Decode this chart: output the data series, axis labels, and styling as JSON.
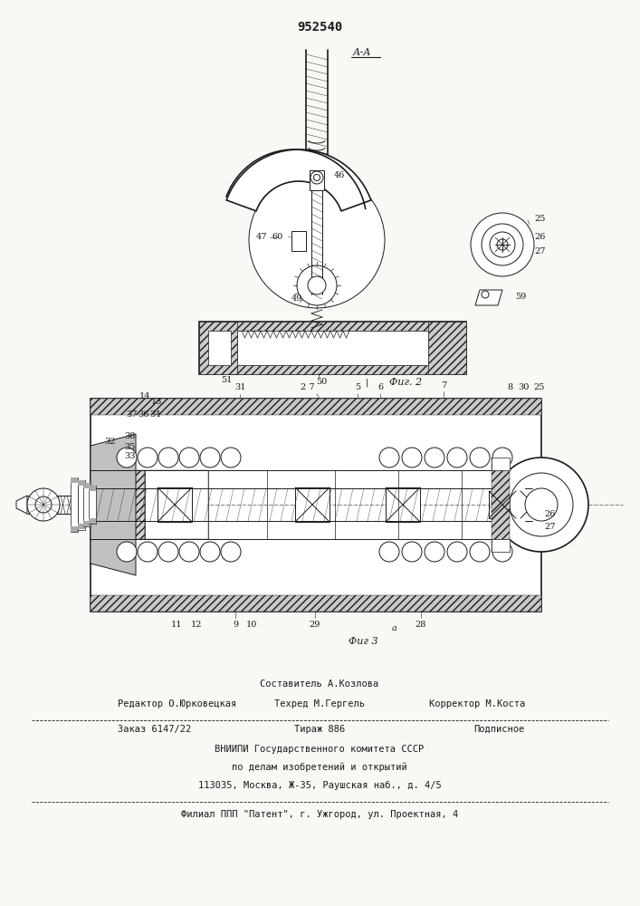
{
  "patent_number": "952540",
  "fig2_label": "Фиг. 2",
  "fig3_label": "Фиг 3",
  "aa_label": "А-А",
  "bg_color": "#f5f5f0",
  "line_color": "#1a1a1a",
  "footer": {
    "line0_center": "Составитель А.Козлова",
    "line1_left": "Редактор О.Юрковецкая",
    "line1_center": "Техред М.Гергель",
    "line1_right": "Корректор М.Коста",
    "line2_left": "Заказ 6147/22",
    "line2_center": "Тираж 886",
    "line2_right": "Подписное",
    "line3": "ВНИИПИ Государственного комитета СССР",
    "line4": "по делам изобретений и открытий",
    "line5": "113035, Москва, Ж-35, Раушская наб., д. 4/5",
    "line6": "Филиал ППП \"Патент\", г. Ужгород, ул. Проектная, 4"
  }
}
